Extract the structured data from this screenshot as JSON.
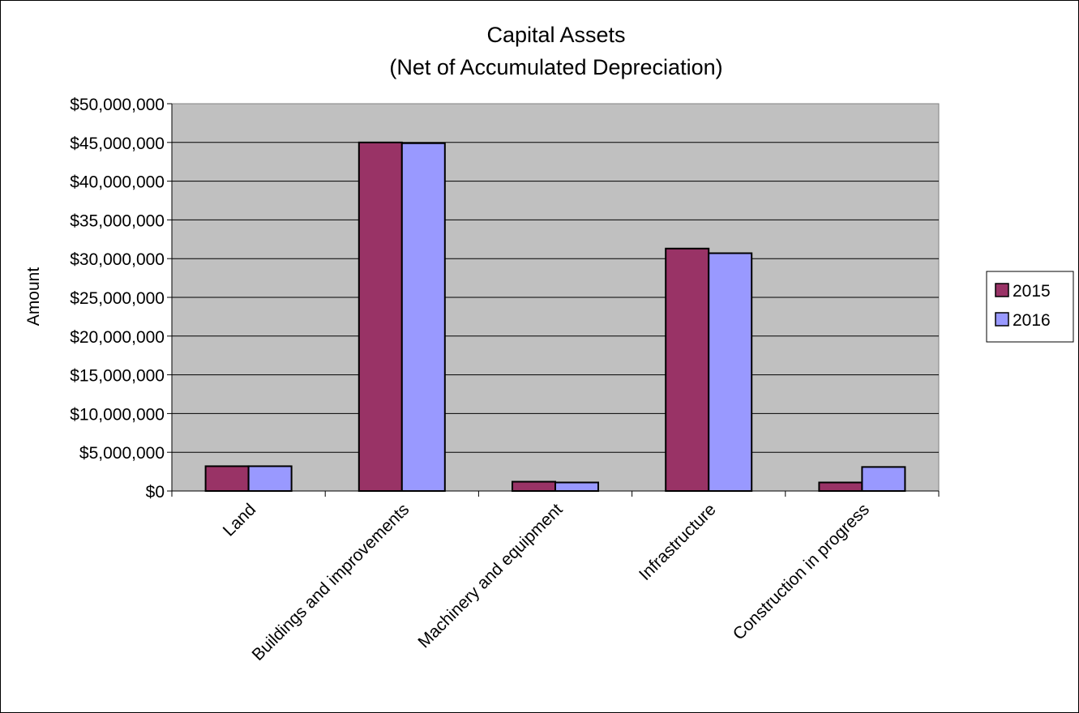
{
  "chart_data": {
    "type": "bar",
    "title": [
      "Capital Assets",
      "(Net of Accumulated Depreciation)"
    ],
    "xlabel": "",
    "ylabel": "Amount",
    "ylim": [
      0,
      50000000
    ],
    "yticks": [
      "$0",
      "$5,000,000",
      "$10,000,000",
      "$15,000,000",
      "$20,000,000",
      "$25,000,000",
      "$30,000,000",
      "$35,000,000",
      "$40,000,000",
      "$45,000,000",
      "$50,000,000"
    ],
    "categories": [
      "Land",
      "Buildings and improvements",
      "Machinery and equipment",
      "Infrastructure",
      "Construction in progress"
    ],
    "series": [
      {
        "name": "2015",
        "color": "#993366",
        "values": [
          3200000,
          45000000,
          1200000,
          31300000,
          1100000
        ]
      },
      {
        "name": "2016",
        "color": "#9999ff",
        "values": [
          3200000,
          44900000,
          1100000,
          30700000,
          3100000
        ]
      }
    ],
    "grid": true,
    "plot_background": "#c0c0c0",
    "legend_position": "right"
  }
}
